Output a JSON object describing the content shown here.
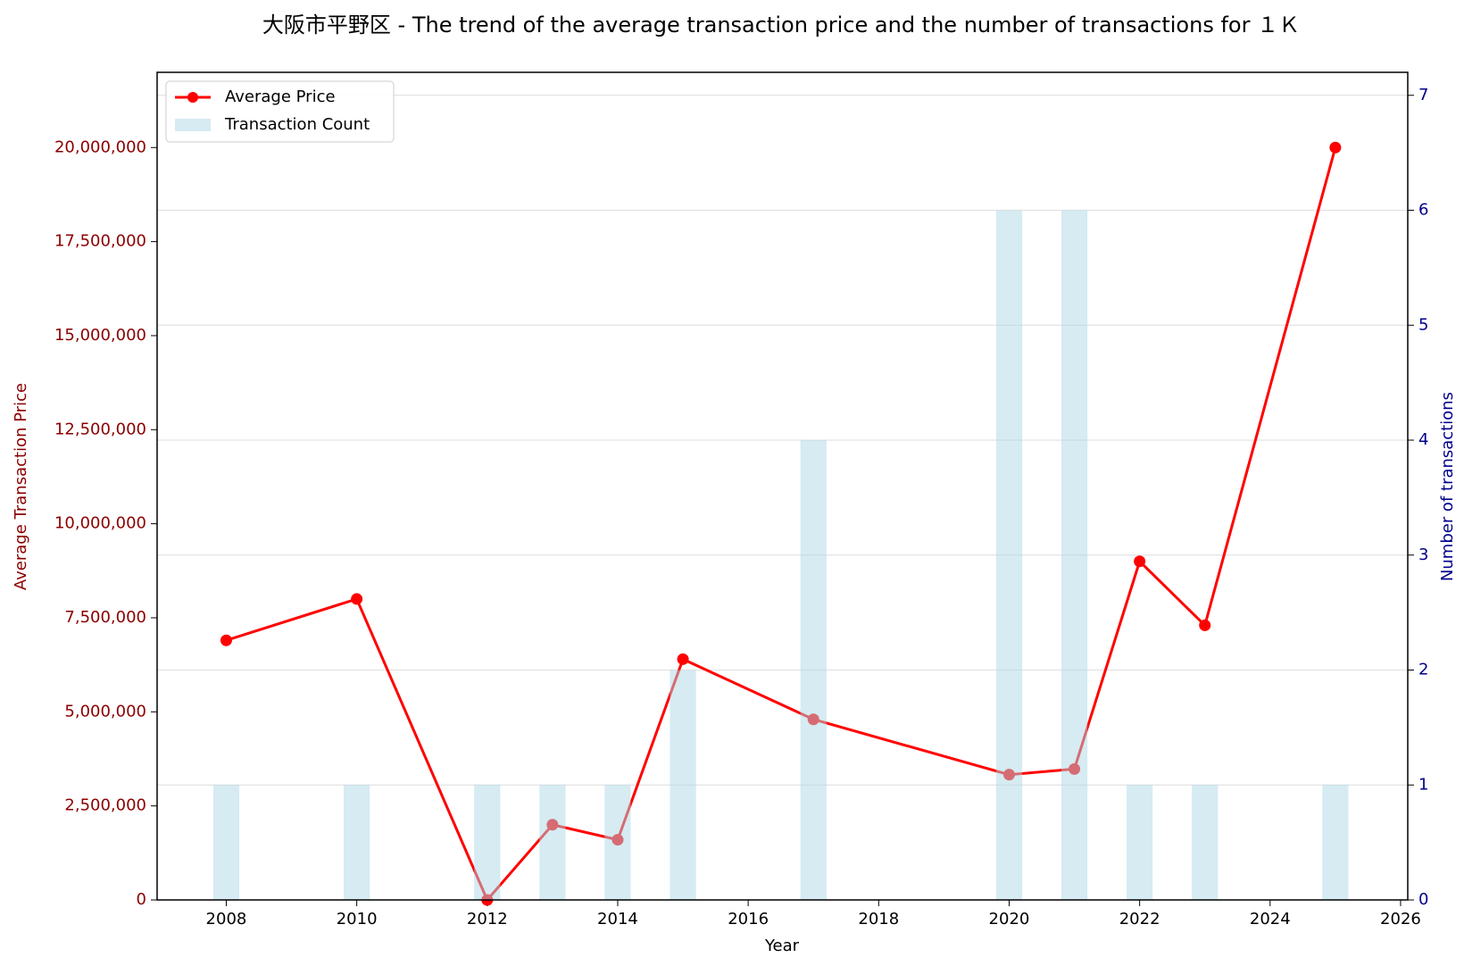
{
  "chart_data": {
    "type": "bar_line",
    "title": "大阪市平野区 - The trend of the average transaction price and the number of transactions for １Ｋ",
    "x_label": "Year",
    "y_label": "Average Transaction Price",
    "y2_label": "Number of transactions",
    "x": [
      2008,
      2010,
      2012,
      2013,
      2014,
      2015,
      2017,
      2020,
      2021,
      2022,
      2023,
      2025
    ],
    "series": [
      {
        "name": "Average Price",
        "type": "line",
        "color": "#ff0000",
        "values": [
          6900000,
          8000000,
          0,
          2000000,
          1600000,
          6400000,
          4800000,
          3330000,
          3480000,
          9000000,
          7300000,
          20000000
        ]
      },
      {
        "name": "Transaction Count",
        "type": "bar",
        "axis": "y2",
        "color": "#add8e6",
        "values": [
          1,
          1,
          1,
          1,
          1,
          2,
          4,
          6,
          6,
          1,
          1,
          1
        ]
      }
    ],
    "xlim": [
      2006.94,
      2026.11
    ],
    "xticks": [
      2008,
      2010,
      2012,
      2014,
      2016,
      2018,
      2020,
      2022,
      2024,
      2026
    ],
    "ylim": [
      0,
      22000000
    ],
    "yticks": [
      0,
      {
        "value": 2500000,
        "label": "2,500,000"
      },
      {
        "value": 5000000,
        "label": "5,000,000"
      },
      {
        "value": 7500000,
        "label": "7,500,000"
      },
      {
        "value": 10000000,
        "label": "10,000,000"
      },
      {
        "value": 12500000,
        "label": "12,500,000"
      },
      {
        "value": 15000000,
        "label": "15,000,000"
      },
      {
        "value": 17500000,
        "label": "17,500,000"
      },
      {
        "value": 20000000,
        "label": "20,000,000"
      }
    ],
    "y2lim": [
      0,
      7.2
    ],
    "y2ticks": [
      0,
      1,
      2,
      3,
      4,
      5,
      6,
      7
    ],
    "grid": true,
    "legend": "upper left"
  }
}
